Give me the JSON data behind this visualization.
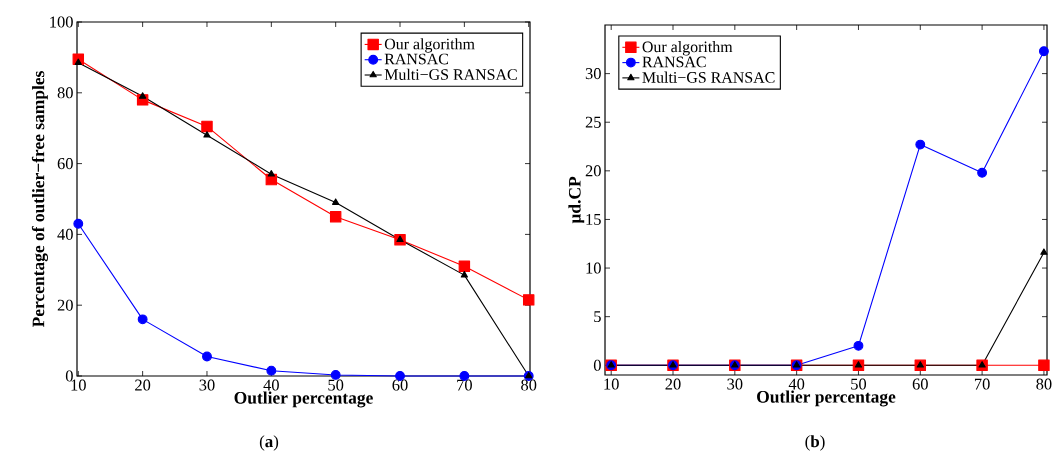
{
  "chart_data": [
    {
      "type": "line",
      "xlabel": "Outlier percentage",
      "ylabel": "Percentage of outlier−free samples",
      "annotations": [
        "(**a**)"
      ],
      "x": [
        10,
        20,
        30,
        40,
        50,
        60,
        70,
        80
      ],
      "xlim": [
        9.8,
        80.2
      ],
      "xticks": [
        10,
        20,
        30,
        40,
        50,
        60,
        70,
        80
      ],
      "ylim": [
        0,
        100
      ],
      "yticks": [
        0,
        20,
        40,
        60,
        80,
        100
      ],
      "legend": "top right",
      "series": [
        {
          "name": "Our algorithm",
          "color": "#ff0000",
          "marker": "square",
          "values": [
            89.5,
            78,
            70.5,
            55.5,
            45,
            38.5,
            31,
            21.5
          ]
        },
        {
          "name": "RANSAC",
          "color": "#0000ff",
          "marker": "circle",
          "values": [
            43,
            16,
            5.5,
            1.5,
            0.3,
            0,
            0,
            0
          ]
        },
        {
          "name": "Multi−GS RANSAC",
          "color": "#000000",
          "marker": "triangle",
          "values": [
            88.5,
            79,
            68,
            57,
            49,
            38.5,
            28.5,
            0
          ]
        }
      ]
    },
    {
      "type": "line",
      "xlabel": "Outlier percentage",
      "ylabel": "µd.CP",
      "annotations": [
        "(**b**)"
      ],
      "x": [
        10,
        20,
        30,
        40,
        50,
        60,
        70,
        80
      ],
      "xlim": [
        9,
        80.5
      ],
      "xticks": [
        10,
        20,
        30,
        40,
        50,
        60,
        70,
        80
      ],
      "ylim": [
        -1,
        35
      ],
      "yticks": [
        0,
        5,
        10,
        15,
        20,
        25,
        30
      ],
      "legend": "top left",
      "series": [
        {
          "name": "Our algorithm",
          "color": "#ff0000",
          "marker": "square",
          "values": [
            0,
            0,
            0,
            0,
            0,
            0,
            0,
            0
          ]
        },
        {
          "name": "RANSAC",
          "color": "#0000ff",
          "marker": "circle",
          "values": [
            0,
            0,
            0,
            0,
            2,
            22.7,
            19.8,
            32.3
          ]
        },
        {
          "name": "Multi−GS RANSAC",
          "color": "#000000",
          "marker": "triangle",
          "values": [
            0,
            0,
            0,
            0,
            0,
            0,
            0,
            11.6
          ]
        }
      ]
    }
  ]
}
